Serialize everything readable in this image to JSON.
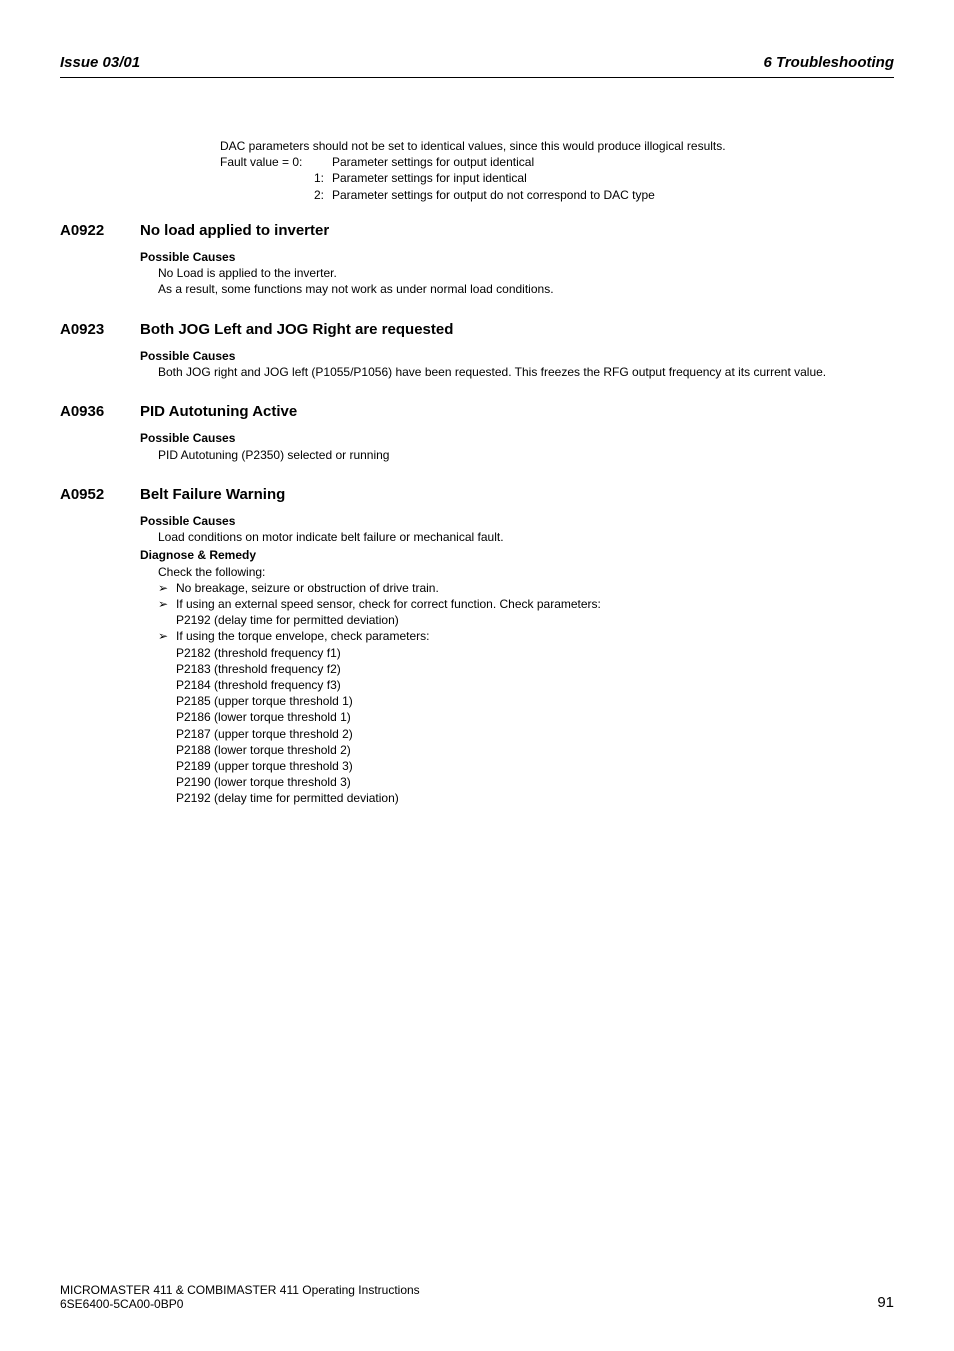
{
  "header": {
    "left": "Issue 03/01",
    "right": "6  Troubleshooting"
  },
  "intro": {
    "line1": "DAC parameters should not be set to identical values, since this would produce illogical results.",
    "fv_label": "Fault value  = 0:",
    "fv0": "Parameter settings for output identical",
    "fv1_label": "1:",
    "fv1": "Parameter settings for input identical",
    "fv2_label": "2:",
    "fv2": "Parameter settings for output do not correspond to DAC type"
  },
  "a0922": {
    "code": "A0922",
    "title": "No load applied to inverter",
    "pc_head": "Possible Causes",
    "pc_l1": "No Load is applied to the inverter.",
    "pc_l2": "As a result, some functions may not work as under normal load conditions."
  },
  "a0923": {
    "code": "A0923",
    "title": "Both JOG Left and JOG Right are requested",
    "pc_head": "Possible Causes",
    "pc_l1": "Both JOG right and JOG left (P1055/P1056) have been requested. This freezes the RFG output frequency at its current value."
  },
  "a0936": {
    "code": "A0936",
    "title": "PID Autotuning Active",
    "pc_head": "Possible Causes",
    "pc_l1": "PID Autotuning (P2350) selected or running"
  },
  "a0952": {
    "code": "A0952",
    "title": "Belt Failure Warning",
    "pc_head": "Possible Causes",
    "pc_l1": "Load conditions on motor indicate belt failure or mechanical fault.",
    "dr_head": "Diagnose & Remedy",
    "dr_l1": "Check the following:",
    "b1": "No breakage, seizure or obstruction of drive train.",
    "b2": "If using an external speed sensor, check for correct function. Check parameters:",
    "b2_s1": "P2192 (delay time for permitted deviation)",
    "b3": "If using the torque envelope, check parameters:",
    "b3_s1": "P2182 (threshold frequency f1)",
    "b3_s2": "P2183 (threshold frequency f2)",
    "b3_s3": "P2184 (threshold frequency f3)",
    "b3_s4": "P2185 (upper torque threshold 1)",
    "b3_s5": "P2186 (lower torque threshold 1)",
    "b3_s6": "P2187 (upper torque threshold 2)",
    "b3_s7": "P2188 (lower torque threshold 2)",
    "b3_s8": "P2189 (upper torque threshold 3)",
    "b3_s9": "P2190 (lower torque threshold 3)",
    "b3_s10": "P2192 (delay time for permitted deviation)"
  },
  "footer": {
    "line1": "MICROMASTER 411 & COMBIMASTER 411    Operating Instructions",
    "line2": "6SE6400-5CA00-0BP0",
    "page": "91"
  },
  "glyphs": {
    "bullet": "➢"
  }
}
